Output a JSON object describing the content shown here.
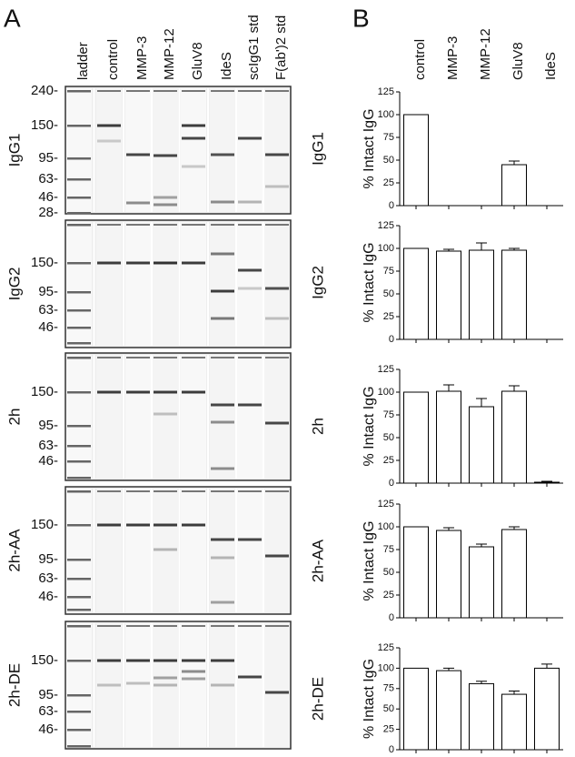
{
  "panel_a": {
    "letter": "A",
    "lanes": [
      "ladder",
      "control",
      "MMP-3",
      "MMP-12",
      "GluV8",
      "IdeS",
      "scIgG1 std",
      "F(ab')2 std"
    ],
    "gels": [
      {
        "label": "IgG1",
        "markers": [
          "240-",
          "150-",
          "95-",
          "63-",
          "46-",
          "28-"
        ]
      },
      {
        "label": "IgG2",
        "markers": [
          "150-",
          "95-",
          "63-",
          "46-"
        ]
      },
      {
        "label": "2h",
        "markers": [
          "150-",
          "95-",
          "63-",
          "46-"
        ]
      },
      {
        "label": "2h-AA",
        "markers": [
          "150-",
          "95-",
          "63-",
          "46-"
        ]
      },
      {
        "label": "2h-DE",
        "markers": [
          "150-",
          "95-",
          "63-",
          "46-"
        ]
      }
    ]
  },
  "panel_b": {
    "letter": "B"
  },
  "chart_data": [
    {
      "type": "bar",
      "title": "IgG1",
      "y_label": "% Intact IgG",
      "categories": [
        "control",
        "MMP-3",
        "MMP-12",
        "GluV8",
        "IdeS"
      ],
      "values": [
        100,
        0,
        0,
        45,
        0
      ],
      "errors": [
        null,
        null,
        null,
        4,
        null
      ],
      "color": "#ffffff",
      "ylim": [
        0,
        125
      ],
      "yticks": [
        0,
        25,
        50,
        75,
        100,
        125
      ]
    },
    {
      "type": "bar",
      "title": "IgG2",
      "y_label": "% Intact IgG",
      "values": [
        100,
        97,
        98,
        98,
        0
      ],
      "errors": [
        null,
        2,
        8,
        2,
        null
      ],
      "color": "#ffffff",
      "ylim": [
        0,
        125
      ],
      "yticks": [
        0,
        25,
        50,
        75,
        100,
        125
      ]
    },
    {
      "type": "bar",
      "title": "2h",
      "y_label": "% Intact IgG",
      "values": [
        100,
        101,
        84,
        101,
        1
      ],
      "errors": [
        null,
        7,
        9,
        6,
        1
      ],
      "color": "#ffffff",
      "ylim": [
        0,
        125
      ],
      "yticks": [
        0,
        25,
        50,
        75,
        100,
        125
      ]
    },
    {
      "type": "bar",
      "title": "2h-AA",
      "y_label": "% Intact IgG",
      "values": [
        100,
        96,
        78,
        97,
        0
      ],
      "errors": [
        null,
        3,
        3,
        3,
        null
      ],
      "color": "#ffffff",
      "ylim": [
        0,
        125
      ],
      "yticks": [
        0,
        25,
        50,
        75,
        100,
        125
      ]
    },
    {
      "type": "bar",
      "title": "2h-DE",
      "y_label": "% Intact IgG",
      "values": [
        100,
        97,
        81,
        68,
        100
      ],
      "errors": [
        null,
        3,
        3,
        4,
        5
      ],
      "color": "#ffffff",
      "ylim": [
        0,
        125
      ],
      "yticks": [
        0,
        25,
        50,
        75,
        100,
        125
      ]
    }
  ]
}
